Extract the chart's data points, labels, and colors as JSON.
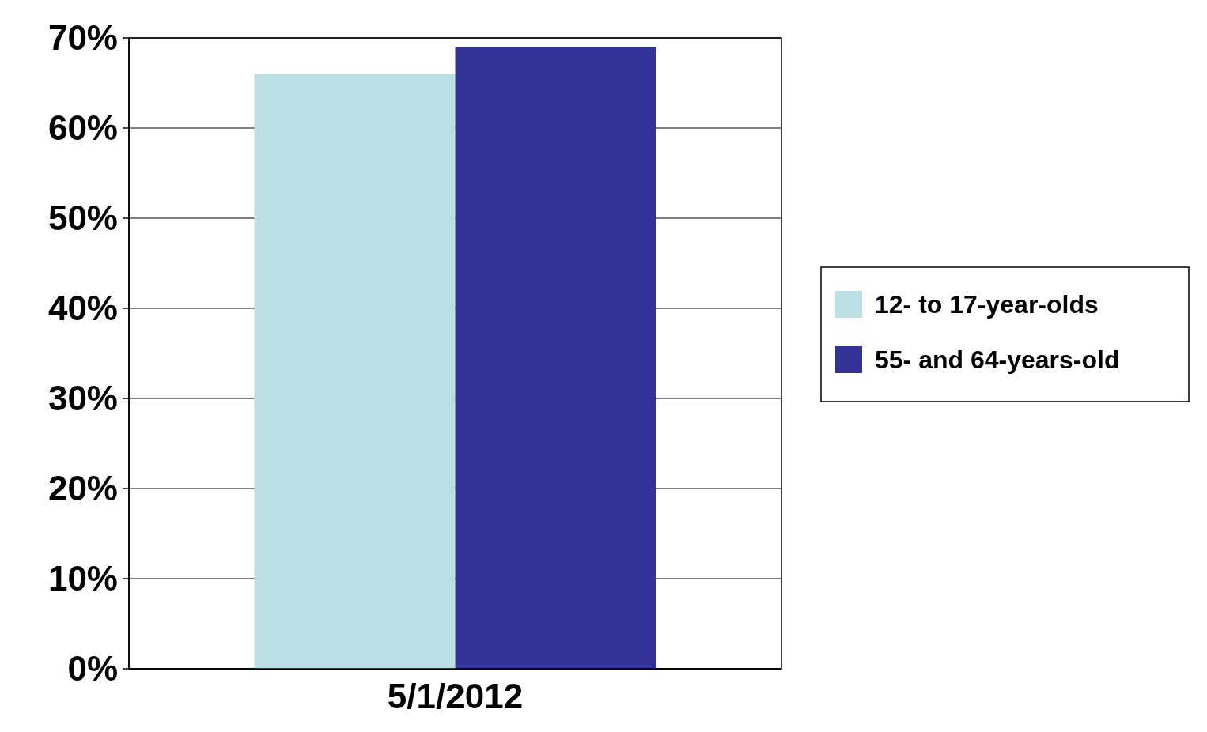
{
  "chart_data": {
    "type": "bar",
    "categories": [
      "5/1/2012"
    ],
    "series": [
      {
        "name": "12- to 17-year-olds",
        "color": "#bae0e3",
        "values": [
          66
        ]
      },
      {
        "name": "55- and 64-years-old",
        "color": "#343397",
        "values": [
          69
        ]
      }
    ],
    "ylim": [
      0,
      70
    ],
    "yticks": [
      {
        "value": 0,
        "label": "0%"
      },
      {
        "value": 10,
        "label": "10%"
      },
      {
        "value": 20,
        "label": "20%"
      },
      {
        "value": 30,
        "label": "30%"
      },
      {
        "value": 40,
        "label": "40%"
      },
      {
        "value": 50,
        "label": "50%"
      },
      {
        "value": 60,
        "label": "60%"
      },
      {
        "value": 70,
        "label": "70%"
      }
    ],
    "grid": "y",
    "legend": "right"
  }
}
